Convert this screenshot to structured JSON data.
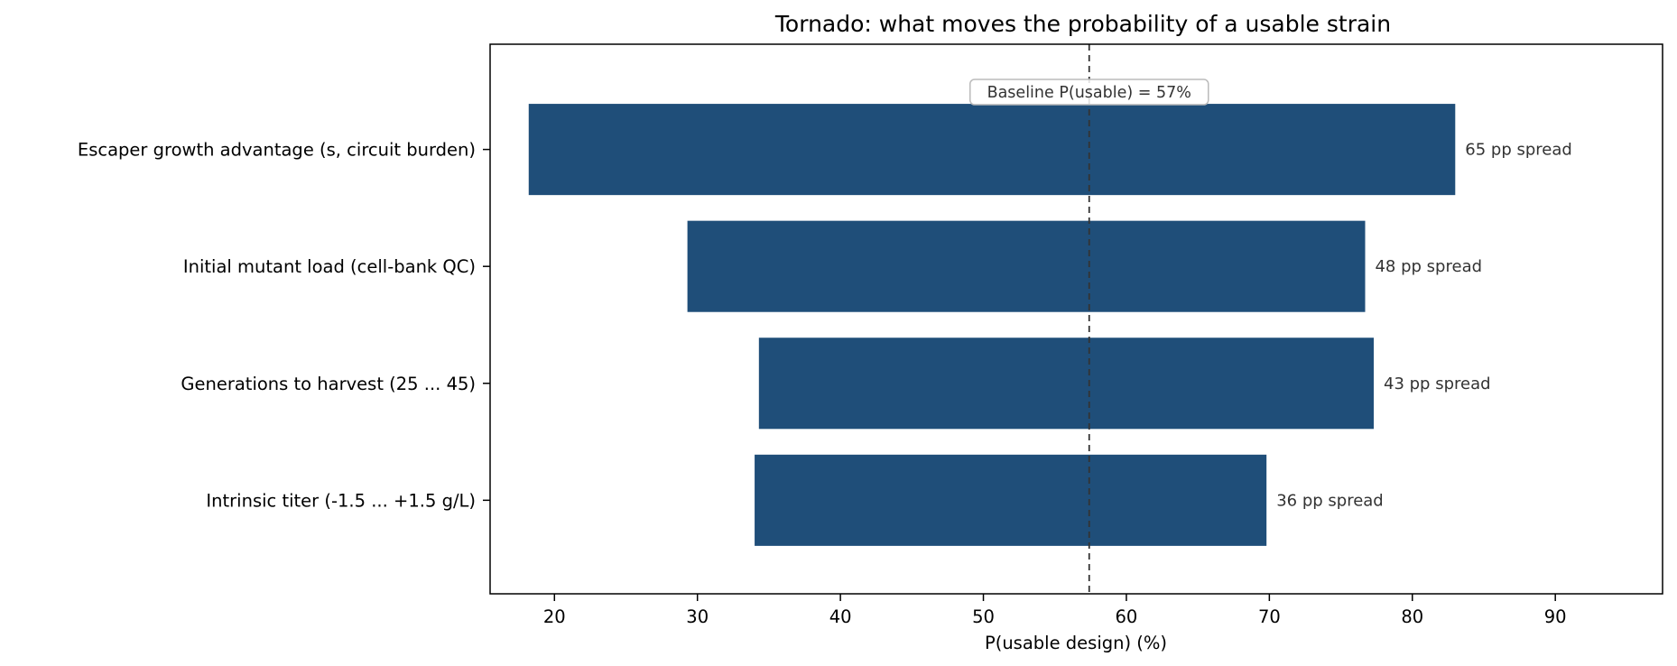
{
  "chart_data": {
    "type": "bar",
    "orientation": "horizontal",
    "title": "Tornado: what moves the probability of a usable strain",
    "xlabel": "P(usable design)  (%)",
    "ylabel": "",
    "xlim": [
      15.5,
      97.5
    ],
    "xticks": [
      20,
      30,
      40,
      50,
      60,
      70,
      80,
      90
    ],
    "grid": false,
    "bar_color": "#1f4e79",
    "baseline": {
      "value": 57.4,
      "label": "Baseline P(usable) = 57%"
    },
    "categories": [
      "Escaper growth advantage  (s, circuit burden)",
      "Initial mutant load  (cell-bank QC)",
      "Generations to harvest  (25 ... 45)",
      "Intrinsic titer  (-1.5 ... +1.5 g/L)"
    ],
    "low": [
      18.2,
      29.3,
      34.3,
      34.0
    ],
    "high": [
      83.0,
      76.7,
      77.3,
      69.8
    ],
    "spread_labels": [
      "65 pp spread",
      "48 pp spread",
      "43 pp spread",
      "36 pp spread"
    ]
  }
}
